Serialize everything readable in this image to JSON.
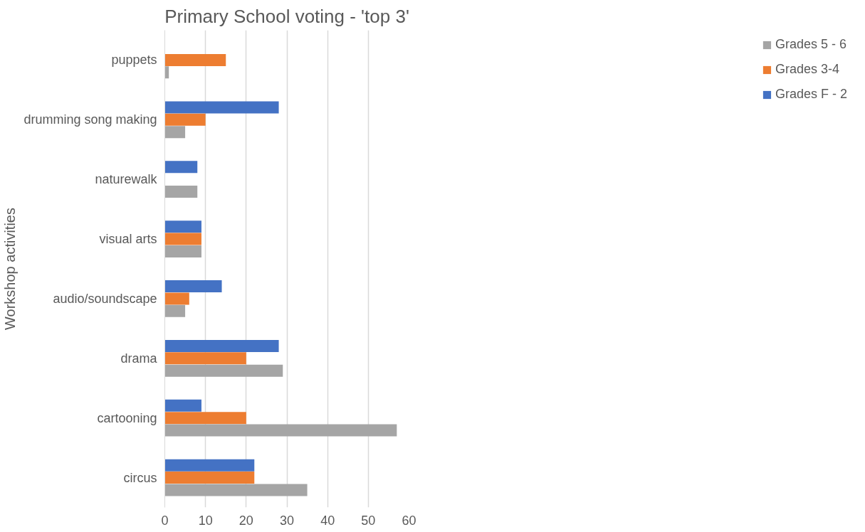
{
  "chart_data": {
    "type": "bar",
    "orientation": "horizontal",
    "title": "Primary School voting - 'top 3'",
    "ylabel": "Workshop activities",
    "categories": [
      "puppets",
      "drumming song making",
      "naturewalk",
      "visual arts",
      "audio/soundscape",
      "drama",
      "cartooning",
      "circus"
    ],
    "series": [
      {
        "name": "Grades F - 2",
        "color": "#4472c4",
        "values": [
          null,
          28,
          8,
          9,
          14,
          28,
          9,
          22
        ]
      },
      {
        "name": "Grades 3-4",
        "color": "#ed7d31",
        "values": [
          15,
          10,
          null,
          9,
          6,
          20,
          20,
          22
        ]
      },
      {
        "name": "Grades 5 - 6",
        "color": "#a5a5a5",
        "values": [
          1,
          5,
          8,
          9,
          5,
          29,
          57,
          35
        ]
      }
    ],
    "xlim": [
      0,
      60
    ],
    "xticks": [
      0,
      10,
      20,
      30,
      40,
      50,
      60
    ],
    "grid": "x",
    "legend": "right"
  }
}
